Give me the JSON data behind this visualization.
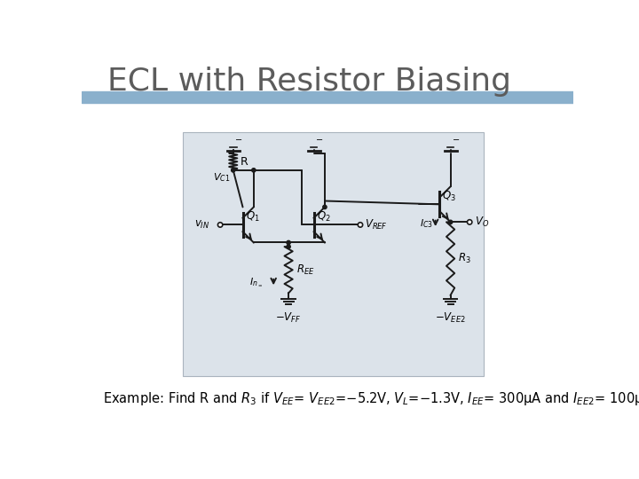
{
  "title": "ECL with Resistor Biasing",
  "title_color": "#5c5c5c",
  "title_fontsize": 26,
  "header_bar_color": "#8ab0cc",
  "background_color": "#ffffff",
  "circuit_box_color": "#dce3ea",
  "circuit_box_edge": "#aab4be",
  "example_fontsize": 10.5,
  "line_color": "#1a1a1a",
  "lw": 1.4
}
